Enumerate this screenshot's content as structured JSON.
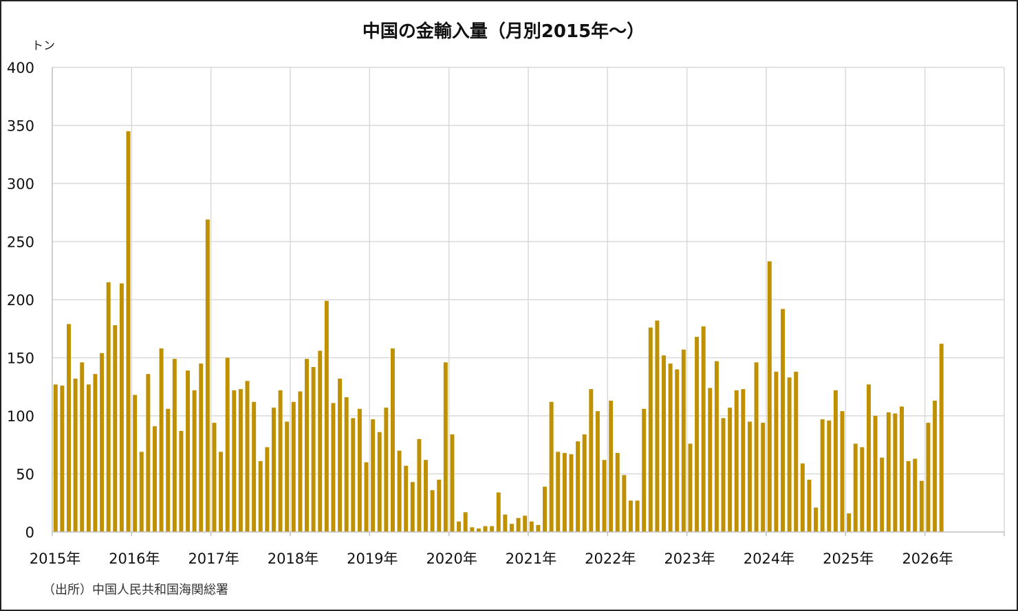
{
  "colors": {
    "bar": "#BF9000",
    "grid": "#D9D9D9",
    "axis": "#BFBFBF",
    "text": "#111111"
  },
  "chart_data": {
    "type": "bar",
    "title": "中国の金輸入量（月別2015年～）",
    "ylabel": "トン",
    "xlabel": "",
    "ylim": [
      0,
      400
    ],
    "yticks": [
      0,
      50,
      100,
      150,
      200,
      250,
      300,
      350,
      400
    ],
    "grid": true,
    "legend": "none",
    "year_labels": [
      "2015年",
      "2016年",
      "2017年",
      "2018年",
      "2019年",
      "2020年",
      "2021年",
      "2022年",
      "2023年",
      "2024年",
      "2025年",
      "2026年"
    ],
    "start_month": "2015-01",
    "values": [
      127,
      126,
      179,
      132,
      146,
      127,
      136,
      154,
      215,
      178,
      214,
      345,
      118,
      69,
      136,
      91,
      158,
      106,
      149,
      87,
      139,
      122,
      145,
      269,
      94,
      69,
      150,
      122,
      123,
      130,
      112,
      61,
      73,
      107,
      122,
      95,
      112,
      121,
      149,
      142,
      156,
      199,
      111,
      132,
      116,
      98,
      106,
      60,
      97,
      86,
      107,
      158,
      70,
      57,
      43,
      80,
      62,
      36,
      45,
      146,
      84,
      9,
      17,
      4,
      3,
      5,
      5,
      34,
      15,
      7,
      12,
      14,
      9,
      6,
      39,
      112,
      69,
      68,
      67,
      78,
      84,
      123,
      104,
      62,
      113,
      68,
      49,
      27,
      27,
      106,
      176,
      182,
      152,
      145,
      140,
      157,
      76,
      168,
      177,
      124,
      147,
      98,
      107,
      122,
      123,
      95,
      146,
      94,
      233,
      138,
      192,
      133,
      138,
      59,
      45,
      21,
      97,
      96,
      122,
      104,
      16,
      76,
      73,
      127,
      100,
      64,
      103,
      102,
      108,
      61,
      63,
      44,
      94,
      113,
      162
    ]
  },
  "source": "（出所）中国人民共和国海関総署"
}
